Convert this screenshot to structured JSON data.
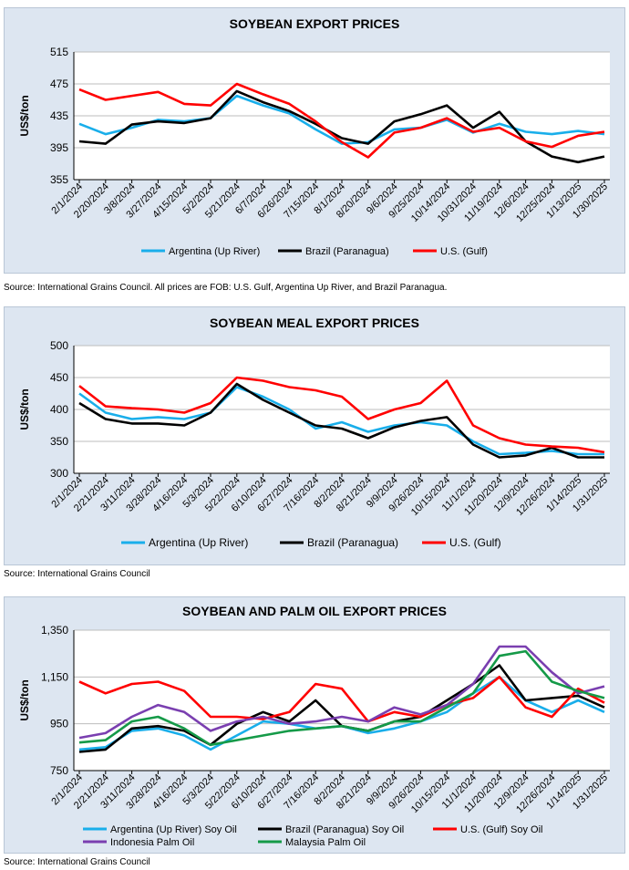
{
  "colors": {
    "argentina": "#19aeea",
    "brazil": "#000000",
    "us": "#ff0000",
    "indonesia": "#7a3fb0",
    "malaysia": "#159a48"
  },
  "sources": {
    "c1": "Source: International Grains Council. All prices are FOB: U.S. Gulf, Argentina Up River, and Brazil Paranagua.",
    "c2": "Source: International Grains Council",
    "c3": "Source: International Grains Council"
  },
  "chart_data": [
    {
      "type": "line",
      "title": "SOYBEAN EXPORT PRICES",
      "ylabel": "US$/ton",
      "ylim": [
        355,
        515
      ],
      "yticks": [
        "355",
        "395",
        "435",
        "475",
        "515"
      ],
      "grid": true,
      "legend_position": "bottom",
      "x": [
        "2/1/2024",
        "2/20/2024",
        "3/8/2024",
        "3/27/2024",
        "4/15/2024",
        "5/2/2024",
        "5/21/2024",
        "6/7/2024",
        "6/26/2024",
        "7/15/2024",
        "8/1/2024",
        "8/20/2024",
        "9/6/2024",
        "9/25/2024",
        "10/14/2024",
        "10/31/2024",
        "11/19/2024",
        "12/6/2024",
        "12/25/2024",
        "1/13/2025",
        "1/30/2025"
      ],
      "series": [
        {
          "name": "Argentina (Up River)",
          "color": "argentina",
          "values": [
            425,
            412,
            420,
            430,
            428,
            432,
            460,
            448,
            438,
            418,
            400,
            402,
            418,
            420,
            430,
            414,
            425,
            415,
            412,
            416,
            412
          ]
        },
        {
          "name": "Brazil (Paranagua)",
          "color": "black",
          "values": [
            403,
            400,
            424,
            428,
            426,
            432,
            466,
            452,
            441,
            425,
            407,
            400,
            428,
            437,
            448,
            420,
            440,
            403,
            384,
            377,
            384
          ]
        },
        {
          "name": "U.S. (Gulf)",
          "color": "us",
          "values": [
            468,
            455,
            460,
            465,
            450,
            448,
            475,
            462,
            450,
            428,
            402,
            383,
            414,
            420,
            432,
            415,
            420,
            403,
            396,
            410,
            415
          ]
        }
      ]
    },
    {
      "type": "line",
      "title": "SOYBEAN MEAL EXPORT PRICES",
      "ylabel": "US$/ton",
      "ylim": [
        300,
        500
      ],
      "yticks": [
        "300",
        "350",
        "400",
        "450",
        "500"
      ],
      "grid": true,
      "legend_position": "bottom",
      "x": [
        "2/1/2024",
        "2/21/2024",
        "3/11/2024",
        "3/28/2024",
        "4/16/2024",
        "5/3/2024",
        "5/22/2024",
        "6/10/2024",
        "6/27/2024",
        "7/16/2024",
        "8/2/2024",
        "8/21/2024",
        "9/9/2024",
        "9/26/2024",
        "10/15/2024",
        "11/1/2024",
        "11/20/2024",
        "12/9/2024",
        "12/26/2024",
        "1/14/2025",
        "1/31/2025"
      ],
      "series": [
        {
          "name": "Argentina (Up River)",
          "color": "argentina",
          "values": [
            425,
            395,
            385,
            388,
            385,
            395,
            435,
            420,
            400,
            370,
            380,
            365,
            375,
            380,
            375,
            350,
            330,
            332,
            335,
            330,
            330
          ]
        },
        {
          "name": "Brazil (Paranagua)",
          "color": "black",
          "values": [
            410,
            385,
            378,
            378,
            375,
            395,
            440,
            415,
            395,
            375,
            370,
            355,
            372,
            382,
            388,
            345,
            325,
            328,
            340,
            325,
            325
          ]
        },
        {
          "name": "U.S. (Gulf)",
          "color": "us",
          "values": [
            437,
            405,
            402,
            400,
            395,
            410,
            450,
            445,
            435,
            430,
            420,
            385,
            400,
            410,
            445,
            375,
            355,
            345,
            342,
            340,
            333
          ]
        }
      ]
    },
    {
      "type": "line",
      "title": "SOYBEAN AND PALM OIL EXPORT PRICES",
      "ylabel": "US$/ton",
      "ylim": [
        750,
        1350
      ],
      "yticks": [
        "750",
        "950",
        "1,150",
        "1,350"
      ],
      "grid": true,
      "legend_position": "bottom",
      "x": [
        "2/1/2024",
        "2/21/2024",
        "3/11/2024",
        "3/28/2024",
        "4/16/2024",
        "5/3/2024",
        "5/22/2024",
        "6/10/2024",
        "6/27/2024",
        "7/16/2024",
        "8/2/2024",
        "8/21/2024",
        "9/9/2024",
        "9/26/2024",
        "10/15/2024",
        "11/1/2024",
        "11/20/2024",
        "12/9/2024",
        "12/26/2024",
        "1/14/2025",
        "1/31/2025"
      ],
      "series": [
        {
          "name": "Argentina (Up River) Soy Oil",
          "color": "argentina",
          "values": [
            840,
            850,
            920,
            930,
            900,
            840,
            900,
            960,
            950,
            930,
            940,
            910,
            930,
            960,
            1000,
            1080,
            1150,
            1050,
            1000,
            1050,
            1000
          ]
        },
        {
          "name": "Brazil (Paranagua) Soy Oil",
          "color": "black",
          "values": [
            830,
            840,
            930,
            940,
            920,
            860,
            950,
            1000,
            960,
            1050,
            940,
            920,
            960,
            980,
            1050,
            1120,
            1200,
            1050,
            1060,
            1070,
            1020
          ]
        },
        {
          "name": "U.S. (Gulf) Soy Oil",
          "color": "us",
          "values": [
            1130,
            1080,
            1120,
            1130,
            1090,
            980,
            980,
            970,
            1000,
            1120,
            1100,
            960,
            1000,
            980,
            1030,
            1060,
            1150,
            1020,
            980,
            1100,
            1040
          ]
        },
        {
          "name": "Indonesia Palm Oil",
          "color": "indonesia",
          "values": [
            890,
            910,
            980,
            1030,
            1000,
            920,
            960,
            980,
            950,
            960,
            980,
            960,
            1020,
            990,
            1030,
            1120,
            1280,
            1280,
            1170,
            1080,
            1110
          ]
        },
        {
          "name": "Malaysia Palm Oil",
          "color": "malaysia",
          "values": [
            870,
            880,
            960,
            980,
            930,
            860,
            880,
            900,
            920,
            930,
            940,
            920,
            960,
            960,
            1020,
            1080,
            1240,
            1260,
            1130,
            1090,
            1060
          ]
        }
      ]
    }
  ]
}
